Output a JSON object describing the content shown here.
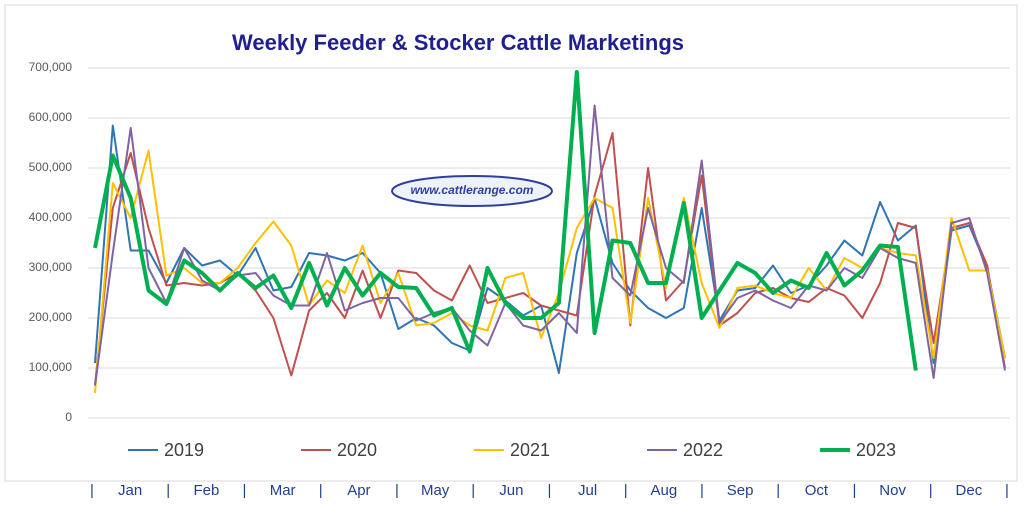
{
  "chart_data": {
    "type": "line",
    "title": "Weekly Feeder & Stocker Cattle Marketings",
    "watermark": "www.cattlerange.com",
    "categories": [
      null,
      null,
      null,
      null,
      null,
      null,
      null,
      null,
      null,
      null,
      null,
      null,
      null,
      null,
      null,
      null,
      null,
      null,
      null,
      null,
      null,
      null,
      null,
      null,
      null,
      null,
      null,
      null,
      null,
      null,
      null,
      null,
      null,
      null,
      null,
      null,
      null,
      null,
      null,
      null,
      null,
      null,
      null,
      null,
      null,
      null,
      null,
      null,
      null,
      null,
      null,
      null
    ],
    "x_axis_labels": [
      "|",
      "Jan",
      "|",
      "Feb",
      "|",
      "Mar",
      "|",
      "Apr",
      "|",
      "May",
      "|",
      "Jun",
      "|",
      "Jul",
      "|",
      "Aug",
      "|",
      "Sep",
      "|",
      "Oct",
      "|",
      "Nov",
      "|",
      "Dec",
      "|"
    ],
    "ylim": [
      0,
      700000
    ],
    "yticks": [
      0,
      {
        "value": 100000,
        "label": "100,000"
      },
      {
        "value": 200000,
        "label": "200,000"
      },
      {
        "value": 300000,
        "label": "300,000"
      },
      {
        "value": 400000,
        "label": "400,000"
      },
      {
        "value": 500000,
        "label": "500,000"
      },
      {
        "value": 600000,
        "label": "600,000"
      },
      {
        "value": 700000,
        "label": "700,000"
      }
    ],
    "grid": true,
    "legend": "bottom",
    "series": [
      {
        "name": "2019",
        "color": "#2e75b6",
        "values": [
          110000,
          585000,
          335000,
          335000,
          270000,
          340000,
          305000,
          315000,
          285000,
          340000,
          255000,
          262000,
          330000,
          325000,
          315000,
          330000,
          290000,
          178000,
          200000,
          185000,
          150000,
          135000,
          260000,
          235000,
          205000,
          225000,
          90000,
          330000,
          440000,
          310000,
          255000,
          220000,
          200000,
          220000,
          420000,
          195000,
          255000,
          260000,
          305000,
          250000,
          265000,
          305000,
          355000,
          325000,
          432000,
          355000,
          385000,
          110000,
          375000,
          385000,
          300000,
          120000
        ]
      },
      {
        "name": "2020",
        "color": "#c0504d",
        "values": [
          65000,
          420000,
          530000,
          380000,
          265000,
          270000,
          265000,
          270000,
          290000,
          255000,
          200000,
          85000,
          215000,
          250000,
          200000,
          295000,
          200000,
          295000,
          290000,
          255000,
          235000,
          305000,
          230000,
          240000,
          250000,
          225000,
          215000,
          205000,
          445000,
          570000,
          185000,
          500000,
          235000,
          275000,
          485000,
          185000,
          210000,
          250000,
          260000,
          240000,
          232000,
          260000,
          245000,
          200000,
          270000,
          390000,
          380000,
          150000,
          380000,
          390000,
          305000,
          100000
        ]
      },
      {
        "name": "2021",
        "color": "#ffc000",
        "values": [
          50000,
          470000,
          400000,
          535000,
          285000,
          300000,
          270000,
          270000,
          300000,
          350000,
          393000,
          345000,
          225000,
          275000,
          250000,
          345000,
          230000,
          290000,
          185000,
          190000,
          210000,
          185000,
          175000,
          280000,
          290000,
          160000,
          250000,
          380000,
          440000,
          420000,
          190000,
          440000,
          260000,
          440000,
          270000,
          180000,
          260000,
          265000,
          250000,
          240000,
          300000,
          255000,
          320000,
          300000,
          340000,
          330000,
          325000,
          120000,
          400000,
          295000,
          295000,
          120000
        ]
      },
      {
        "name": "2022",
        "color": "#8064a2",
        "values": [
          65000,
          330000,
          580000,
          300000,
          230000,
          340000,
          275000,
          255000,
          285000,
          290000,
          245000,
          225000,
          225000,
          330000,
          215000,
          230000,
          240000,
          240000,
          195000,
          210000,
          220000,
          175000,
          145000,
          230000,
          185000,
          175000,
          210000,
          170000,
          625000,
          280000,
          245000,
          420000,
          300000,
          270000,
          515000,
          190000,
          240000,
          255000,
          235000,
          220000,
          265000,
          255000,
          300000,
          280000,
          340000,
          320000,
          310000,
          80000,
          390000,
          400000,
          290000,
          95000
        ]
      },
      {
        "name": "2023",
        "color": "#00b050",
        "values": [
          340000,
          525000,
          440000,
          255000,
          228000,
          315000,
          290000,
          255000,
          290000,
          260000,
          285000,
          220000,
          310000,
          225000,
          300000,
          245000,
          290000,
          262000,
          260000,
          205000,
          220000,
          133000,
          300000,
          230000,
          200000,
          200000,
          230000,
          692000,
          170000,
          355000,
          350000,
          270000,
          270000,
          430000,
          200000,
          255000,
          310000,
          290000,
          250000,
          275000,
          260000,
          330000,
          265000,
          295000,
          345000,
          342000,
          95000,
          null,
          null,
          null,
          null,
          null
        ]
      }
    ]
  }
}
